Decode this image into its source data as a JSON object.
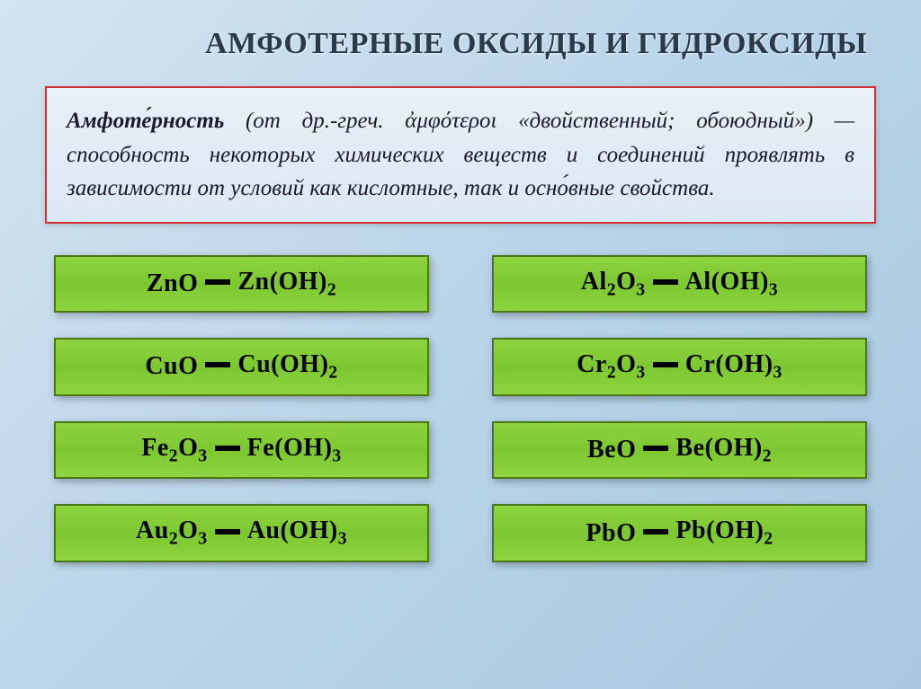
{
  "title": "АМФОТЕРНЫЕ ОКСИДЫ И ГИДРОКСИДЫ",
  "definition": {
    "term": "Амфоте́рность",
    "body": " (от др.-греч. ἀμφότεροι «двойственный; обоюдный») — способность некоторых химических веществ и соединений проявлять в зависимости от условий как кислотные, так и осно́вные свойства."
  },
  "colors": {
    "background_gradient_from": "#d4e4f0",
    "background_gradient_to": "#a8c8e0",
    "definition_border": "#d03030",
    "box_fill": "#8ed440",
    "box_border": "#4a7818",
    "title_color": "#2a3a4a",
    "text_color": "#000000"
  },
  "typography": {
    "title_fontsize": 34,
    "definition_fontsize": 25,
    "formula_fontsize": 28,
    "font_family": "Times New Roman"
  },
  "layout": {
    "columns": 2,
    "rows": 4,
    "row_gap": 28,
    "col_gap": 70
  },
  "pairs": [
    {
      "oxide": "ZnO",
      "hydroxide": "Zn(OH)<sub>2</sub>"
    },
    {
      "oxide": "Al<sub>2</sub>O<sub>3</sub>",
      "hydroxide": "Al(OH)<sub>3</sub>"
    },
    {
      "oxide": "CuO",
      "hydroxide": "Cu(OH)<sub>2</sub>"
    },
    {
      "oxide": "Cr<sub>2</sub>O<sub>3</sub>",
      "hydroxide": "Cr(OH)<sub>3</sub>"
    },
    {
      "oxide": "Fe<sub>2</sub>O<sub>3</sub>",
      "hydroxide": "Fe(OH)<sub>3</sub>"
    },
    {
      "oxide": "BeO",
      "hydroxide": "Be(OH)<sub>2</sub>"
    },
    {
      "oxide": "Au<sub>2</sub>O<sub>3</sub>",
      "hydroxide": "Au(OH)<sub>3</sub>"
    },
    {
      "oxide": "PbO",
      "hydroxide": "Pb(OH)<sub>2</sub>"
    }
  ]
}
